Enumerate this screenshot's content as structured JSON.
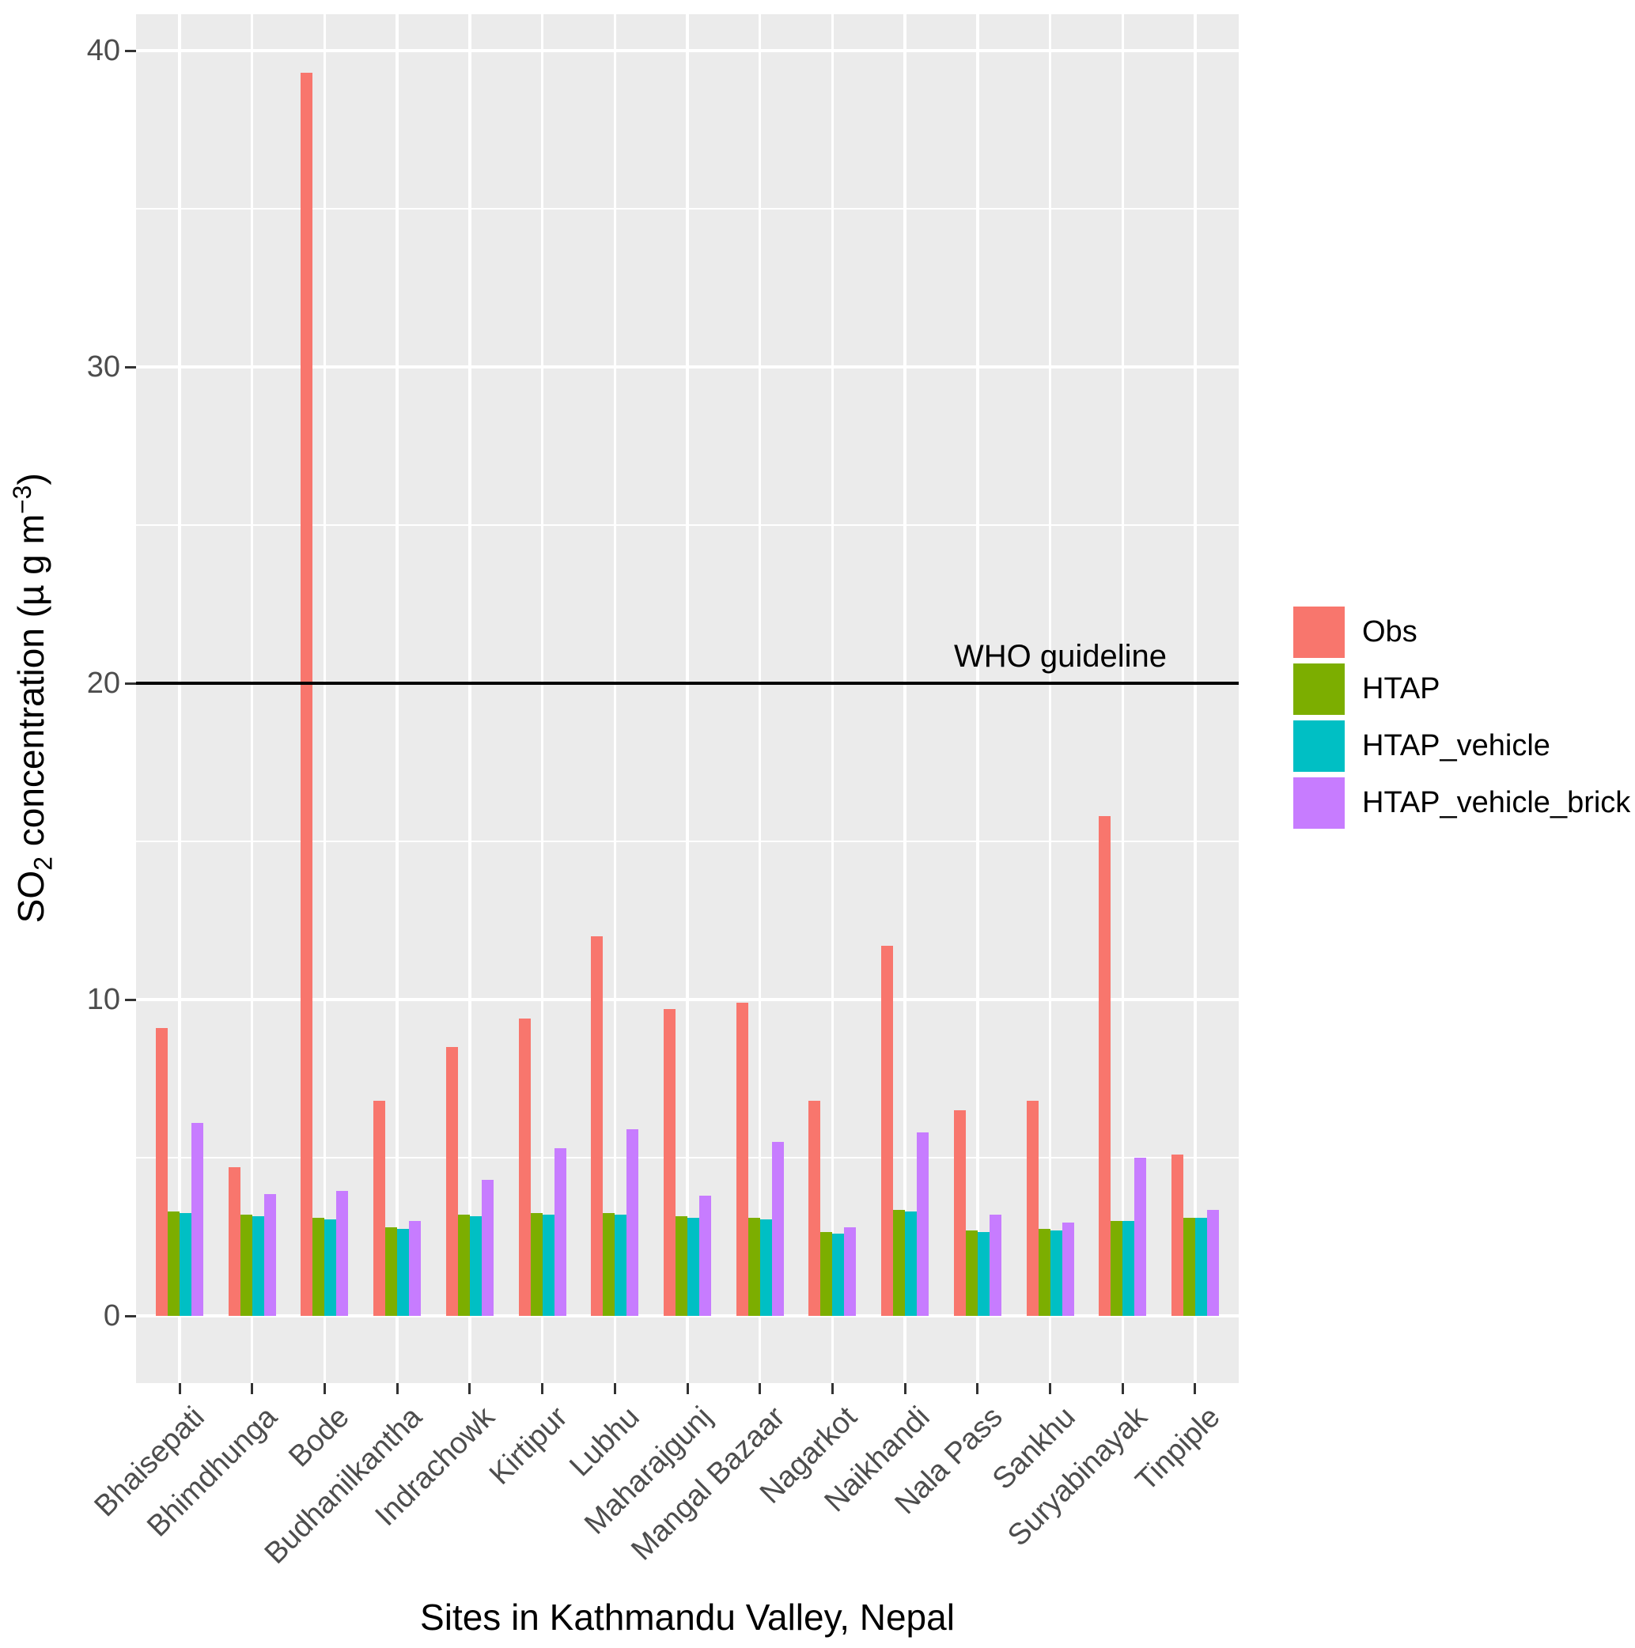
{
  "chart_data": {
    "type": "bar",
    "title": "",
    "xlabel": "Sites in Kathmandu Valley, Nepal",
    "ylabel_parts": {
      "pre": "SO",
      "sub": "2",
      "mid": " concentration (µ g m",
      "sup": "−3",
      "post": ")"
    },
    "categories": [
      "Bhaisepati",
      "Bhimdhunga",
      "Bode",
      "Budhanilkantha",
      "Indrachowk",
      "Kirtipur",
      "Lubhu",
      "Maharajgunj",
      "Mangal Bazaar",
      "Nagarkot",
      "Naikhandi",
      "Nala Pass",
      "Sankhu",
      "Suryabinayak",
      "Tinpiple"
    ],
    "series": [
      {
        "name": "Obs",
        "color": "#F8766D",
        "values": [
          9.1,
          4.7,
          39.3,
          6.8,
          8.5,
          9.4,
          12.0,
          9.7,
          9.9,
          6.8,
          11.7,
          6.5,
          6.8,
          15.8,
          5.1
        ]
      },
      {
        "name": "HTAP",
        "color": "#7CAE00",
        "values": [
          3.3,
          3.2,
          3.1,
          2.8,
          3.2,
          3.25,
          3.25,
          3.15,
          3.1,
          2.65,
          3.35,
          2.7,
          2.75,
          3.0,
          3.1
        ]
      },
      {
        "name": "HTAP_vehicle",
        "color": "#00BFC4",
        "values": [
          3.25,
          3.15,
          3.05,
          2.75,
          3.15,
          3.2,
          3.2,
          3.1,
          3.05,
          2.6,
          3.3,
          2.65,
          2.7,
          3.0,
          3.1
        ]
      },
      {
        "name": "HTAP_vehicle_brick",
        "color": "#C77CFF",
        "values": [
          6.1,
          3.85,
          3.95,
          3.0,
          4.3,
          5.3,
          5.9,
          3.8,
          5.5,
          2.8,
          5.8,
          3.2,
          2.95,
          5.0,
          3.35
        ]
      }
    ],
    "y_ticks": [
      0,
      10,
      20,
      30,
      40
    ],
    "y_minor_ticks": [
      5,
      15,
      25,
      35
    ],
    "ylim": [
      -2.1,
      41.4
    ],
    "grid": true,
    "legend_position": "right",
    "annotation": {
      "label": "WHO guideline",
      "value": 20
    },
    "panel_background": "#EBEBEB",
    "axis_text_color": "#4D4D4D"
  }
}
